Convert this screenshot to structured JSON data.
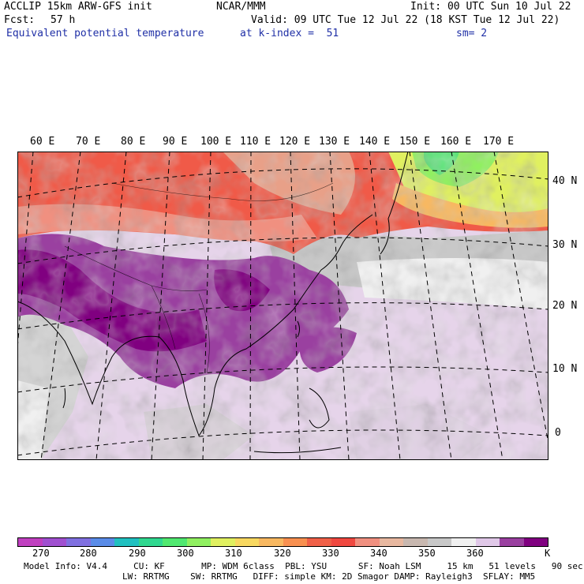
{
  "header": {
    "model": "ACCLIP 15km ARW-GFS init",
    "center": "NCAR/MMM",
    "init": "Init: 00 UTC Sun 10 Jul 22",
    "fcst_label": "Fcst:",
    "fcst_value": "57 h",
    "valid": "Valid: 09 UTC Tue 12 Jul 22 (18 KST Tue 12 Jul 22)",
    "field": "Equivalent potential temperature",
    "level": "at k-index =  51",
    "smooth": "sm= 2"
  },
  "map": {
    "lon_labels": [
      "60 E",
      "70 E",
      "80 E",
      "90 E",
      "100 E",
      "110 E",
      "120 E",
      "130 E",
      "140 E",
      "150 E",
      "160 E",
      "170 E"
    ],
    "lat_labels": [
      "40 N",
      "30 N",
      "20 N",
      "10 N",
      "0"
    ]
  },
  "colorbar": {
    "colors": [
      "#c040c0",
      "#a050d0",
      "#8070e0",
      "#5a8ce8",
      "#20c0c0",
      "#30d890",
      "#50e870",
      "#90f060",
      "#e0f060",
      "#f8d860",
      "#f8b860",
      "#f89050",
      "#f06048",
      "#f04840",
      "#f09080",
      "#e8b8a0",
      "#c8b8b0",
      "#c8c8c8",
      "#f0f0f0",
      "#e0c8e8",
      "#9a40a0",
      "#800080"
    ],
    "ticks": [
      "270",
      "280",
      "290",
      "300",
      "310",
      "320",
      "330",
      "340",
      "350",
      "360"
    ],
    "unit": "K"
  },
  "footer": {
    "line1": "Model Info: V4.4     CU: KF       MP: WDM 6class  PBL: YSU      SF: Noah LSM     15 km   51 levels   90 sec",
    "line2": "LW: RRTMG    SW: RRTMG   DIFF: simple KM: 2D Smagor DAMP: Rayleigh3  SFLAY: MM5"
  }
}
